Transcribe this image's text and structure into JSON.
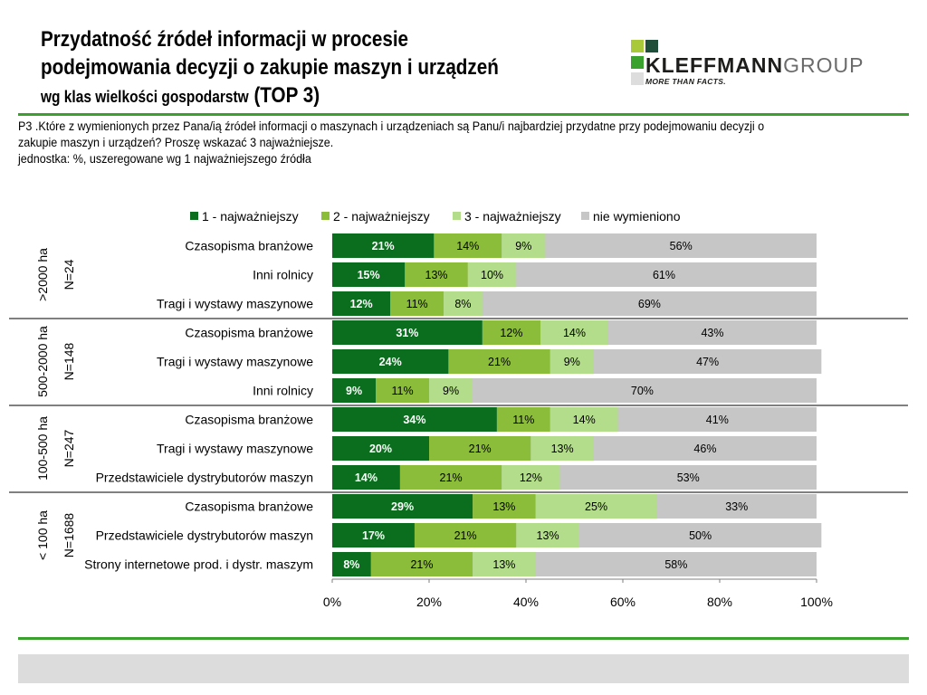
{
  "header": {
    "title_line1": "Przydatność źródeł informacji w procesie",
    "title_line2": "podejmowania decyzji o zakupie maszyn i urządzeń",
    "title_line3": "wg klas wielkości gospodarstw",
    "title_top3": "(TOP 3)",
    "question_line1": "P3 .Które z wymienionych przez Pana/ią źródeł informacji o maszynach i urządzeniach są Panu/i najbardziej przydatne przy podejmowaniu decyzji o",
    "question_line2": "zakupie maszyn i urządzeń? Proszę wskazać 3 najważniejsze.",
    "question_line3": "jednostka: %, uszeregowane wg 1 najważniejszego źródła"
  },
  "logo": {
    "word_bold": "KLEFFMANN",
    "word_light": "GROUP",
    "tagline": "MORE THAN FACTS.",
    "colors": [
      "#a8c93a",
      "#1d4f3a",
      "#3aa12f",
      "#dddddd"
    ]
  },
  "chart_data": {
    "type": "bar",
    "orientation": "horizontal-stacked-100",
    "xlim": [
      0,
      100
    ],
    "xticks": [
      "0%",
      "20%",
      "40%",
      "60%",
      "80%",
      "100%"
    ],
    "legend_position": "top",
    "series": [
      {
        "name": "1 - najważniejszy",
        "color": "#0b6d1e"
      },
      {
        "name": "2 - najważniejszy",
        "color": "#8cbd3a"
      },
      {
        "name": "3 - najważniejszy",
        "color": "#b3dd8a"
      },
      {
        "name": "nie wymieniono",
        "color": "#c6c6c6"
      }
    ],
    "groups": [
      {
        "label": ">2000 ha",
        "n": "N=24",
        "rows": [
          {
            "category": "Czasopisma branżowe",
            "values": [
              21,
              14,
              9,
              56
            ]
          },
          {
            "category": "Inni rolnicy",
            "values": [
              15,
              13,
              10,
              61
            ]
          },
          {
            "category": "Tragi i wystawy maszynowe",
            "values": [
              12,
              11,
              8,
              69
            ]
          }
        ]
      },
      {
        "label": "500-2000 ha",
        "n": "N=148",
        "rows": [
          {
            "category": "Czasopisma branżowe",
            "values": [
              31,
              12,
              14,
              43
            ]
          },
          {
            "category": "Tragi i wystawy maszynowe",
            "values": [
              24,
              21,
              9,
              47
            ]
          },
          {
            "category": "Inni rolnicy",
            "values": [
              9,
              11,
              9,
              70
            ]
          }
        ]
      },
      {
        "label": "100-500 ha",
        "n": "N=247",
        "rows": [
          {
            "category": "Czasopisma branżowe",
            "values": [
              34,
              11,
              14,
              41
            ]
          },
          {
            "category": "Tragi i wystawy maszynowe",
            "values": [
              20,
              21,
              13,
              46
            ]
          },
          {
            "category": "Przedstawiciele dystrybutorów maszyn",
            "values": [
              14,
              21,
              12,
              53
            ]
          }
        ]
      },
      {
        "label": "< 100 ha",
        "n": "N=1688",
        "rows": [
          {
            "category": "Czasopisma branżowe",
            "values": [
              29,
              13,
              25,
              33
            ]
          },
          {
            "category": "Przedstawiciele dystrybutorów maszyn",
            "values": [
              17,
              21,
              13,
              50
            ]
          },
          {
            "category": "Strony internetowe prod. i dystr. maszym",
            "values": [
              8,
              21,
              13,
              58
            ]
          }
        ]
      }
    ]
  }
}
